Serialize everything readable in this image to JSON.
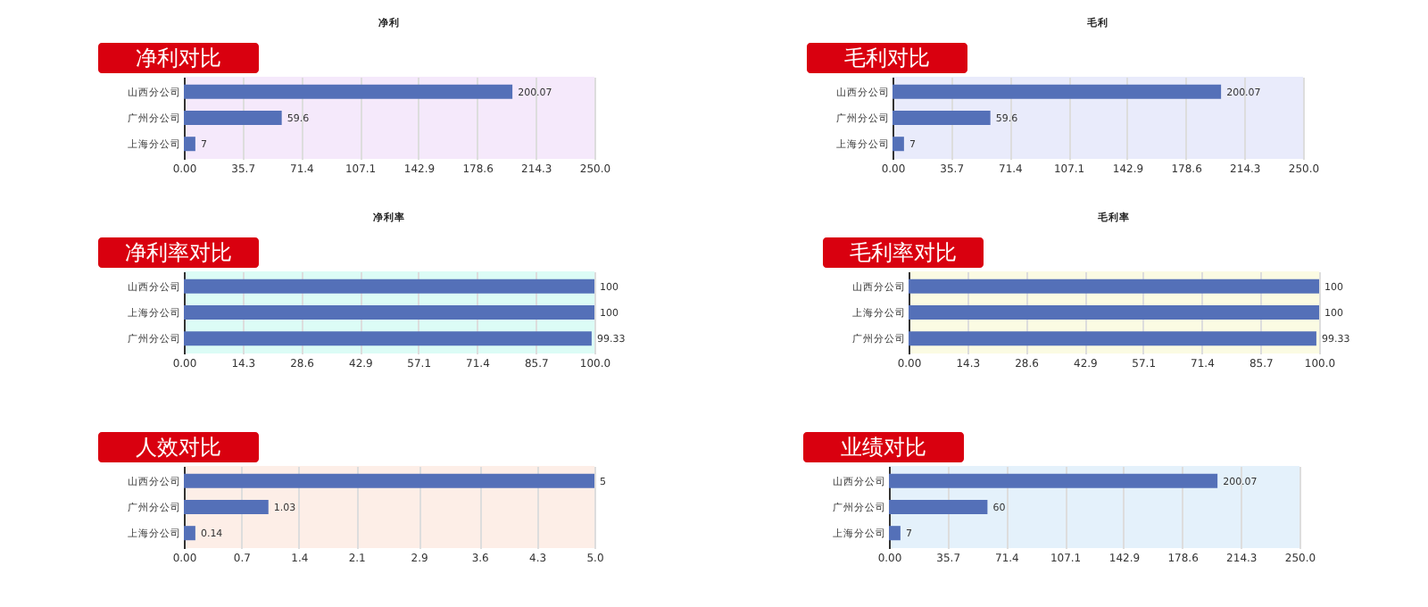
{
  "chart_data": [
    {
      "type": "bar",
      "orientation": "horizontal",
      "title": "净利对比",
      "subtitle": "净利",
      "categories": [
        "山西分公司",
        "广州分公司",
        "上海分公司"
      ],
      "values": [
        200.07,
        59.6,
        7
      ],
      "color": "#5470b8",
      "xlim": [
        0,
        250
      ],
      "xticks": [
        {
          "value": 0,
          "label": "0.00"
        },
        35.7,
        71.4,
        107.1,
        142.9,
        178.6,
        214.3,
        {
          "value": 250,
          "label": "250.0"
        }
      ],
      "grid": "x",
      "data_labels": true
    },
    {
      "type": "bar",
      "orientation": "horizontal",
      "title": "毛利对比",
      "subtitle": "毛利",
      "categories": [
        "山西分公司",
        "广州分公司",
        "上海分公司"
      ],
      "values": [
        200.07,
        59.6,
        7
      ],
      "color": "#5470b8",
      "xlim": [
        0,
        250
      ],
      "xticks": [
        {
          "value": 0,
          "label": "0.00"
        },
        35.7,
        71.4,
        107.1,
        142.9,
        178.6,
        214.3,
        {
          "value": 250,
          "label": "250.0"
        }
      ],
      "grid": "x",
      "data_labels": true
    },
    {
      "type": "bar",
      "orientation": "horizontal",
      "title": "净利率对比",
      "subtitle": "净利率",
      "categories": [
        "山西分公司",
        "上海分公司",
        "广州分公司"
      ],
      "values": [
        100,
        100,
        99.33
      ],
      "color": "#5470b8",
      "xlim": [
        0,
        100
      ],
      "xticks": [
        {
          "value": 0,
          "label": "0.00"
        },
        14.3,
        28.6,
        42.9,
        57.1,
        71.4,
        85.7,
        {
          "value": 100,
          "label": "100.0"
        }
      ],
      "grid": "x",
      "data_labels": true
    },
    {
      "type": "bar",
      "orientation": "horizontal",
      "title": "毛利率对比",
      "subtitle": "毛利率",
      "categories": [
        "山西分公司",
        "上海分公司",
        "广州分公司"
      ],
      "values": [
        100,
        100,
        99.33
      ],
      "color": "#5470b8",
      "xlim": [
        0,
        100
      ],
      "xticks": [
        {
          "value": 0,
          "label": "0.00"
        },
        14.3,
        28.6,
        42.9,
        57.1,
        71.4,
        85.7,
        {
          "value": 100,
          "label": "100.0"
        }
      ],
      "grid": "x",
      "data_labels": true
    },
    {
      "type": "bar",
      "orientation": "horizontal",
      "title": "人效对比",
      "categories": [
        "山西分公司",
        "广州分公司",
        "上海分公司"
      ],
      "values": [
        5,
        1.03,
        0.14
      ],
      "color": "#5470b8",
      "xlim": [
        0,
        5
      ],
      "xticks": [
        {
          "value": 0,
          "label": "0.00"
        },
        0.7,
        1.4,
        2.1,
        {
          "value": 2.86,
          "label": "2.9"
        },
        3.6,
        4.3,
        {
          "value": 5,
          "label": "5.0"
        }
      ],
      "grid": "x",
      "data_labels": true
    },
    {
      "type": "bar",
      "orientation": "horizontal",
      "title": "业绩对比",
      "categories": [
        "山西分公司",
        "广州分公司",
        "上海分公司"
      ],
      "values": [
        200.07,
        60,
        7
      ],
      "color": "#5470b8",
      "xlim": [
        0,
        250
      ],
      "xticks": [
        {
          "value": 0,
          "label": "0.00"
        },
        35.7,
        71.4,
        107.1,
        142.9,
        178.6,
        214.3,
        {
          "value": 250,
          "label": "250.0"
        }
      ],
      "grid": "x",
      "data_labels": true
    }
  ]
}
